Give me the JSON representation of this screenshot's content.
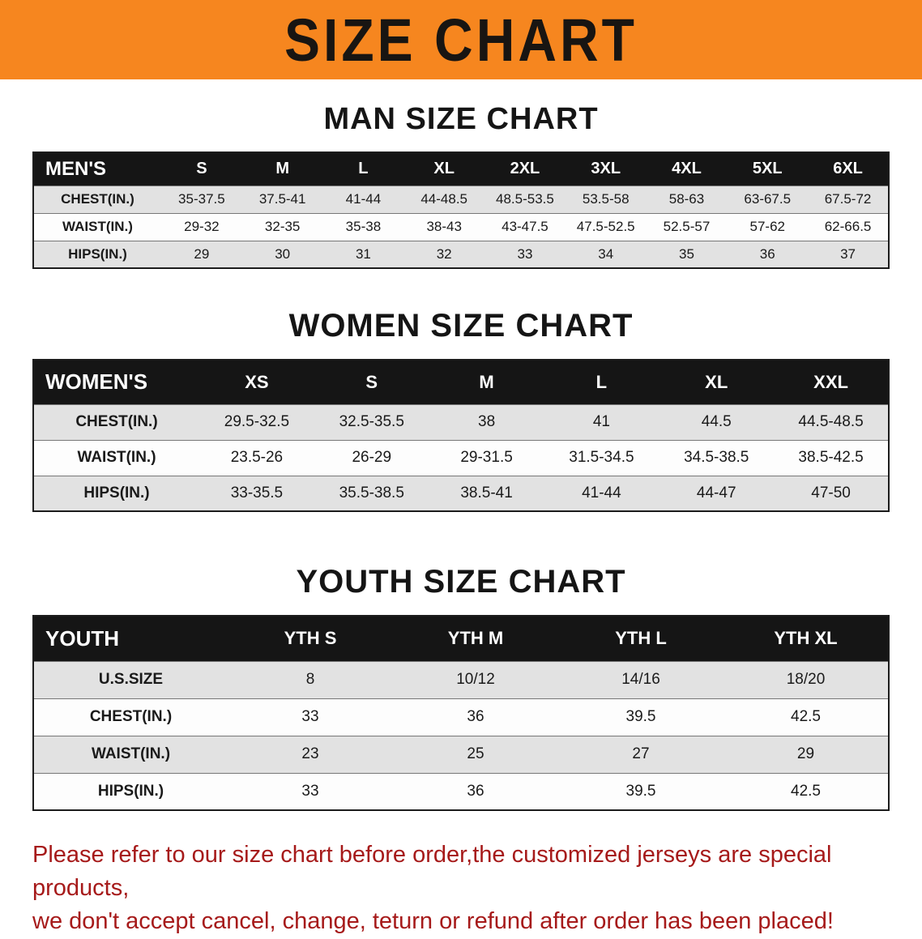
{
  "banner": {
    "title": "SIZE CHART"
  },
  "colors": {
    "banner_bg": "#f6861f",
    "table_header_bg": "#151515",
    "row_stripe": "#e2e2e2",
    "disclaimer_red": "#a61a1a"
  },
  "sections": [
    {
      "heading": "MAN SIZE CHART",
      "table": {
        "header": [
          "MEN'S",
          "S",
          "M",
          "L",
          "XL",
          "2XL",
          "3XL",
          "4XL",
          "5XL",
          "6XL"
        ],
        "rows": [
          [
            "CHEST(IN.)",
            "35-37.5",
            "37.5-41",
            "41-44",
            "44-48.5",
            "48.5-53.5",
            "53.5-58",
            "58-63",
            "63-67.5",
            "67.5-72"
          ],
          [
            "WAIST(IN.)",
            "29-32",
            "32-35",
            "35-38",
            "38-43",
            "43-47.5",
            "47.5-52.5",
            "52.5-57",
            "57-62",
            "62-66.5"
          ],
          [
            "HIPS(IN.)",
            "29",
            "30",
            "31",
            "32",
            "33",
            "34",
            "35",
            "36",
            "37"
          ]
        ]
      }
    },
    {
      "heading": "WOMEN SIZE CHART",
      "table": {
        "header": [
          "WOMEN'S",
          "XS",
          "S",
          "M",
          "L",
          "XL",
          "XXL"
        ],
        "rows": [
          [
            "CHEST(IN.)",
            "29.5-32.5",
            "32.5-35.5",
            "38",
            "41",
            "44.5",
            "44.5-48.5"
          ],
          [
            "WAIST(IN.)",
            "23.5-26",
            "26-29",
            "29-31.5",
            "31.5-34.5",
            "34.5-38.5",
            "38.5-42.5"
          ],
          [
            "HIPS(IN.)",
            "33-35.5",
            "35.5-38.5",
            "38.5-41",
            "41-44",
            "44-47",
            "47-50"
          ]
        ]
      }
    },
    {
      "heading": "YOUTH SIZE CHART",
      "table": {
        "header": [
          "YOUTH",
          "YTH S",
          "YTH M",
          "YTH L",
          "YTH XL"
        ],
        "rows": [
          [
            "U.S.SIZE",
            "8",
            "10/12",
            "14/16",
            "18/20"
          ],
          [
            "CHEST(IN.)",
            "33",
            "36",
            "39.5",
            "42.5"
          ],
          [
            "WAIST(IN.)",
            "23",
            "25",
            "27",
            "29"
          ],
          [
            "HIPS(IN.)",
            "33",
            "36",
            "39.5",
            "42.5"
          ]
        ]
      }
    }
  ],
  "disclaimer": {
    "lines": [
      "Please refer to our size chart before order,the customized jerseys are special products,",
      "we don't accept cancel, change, teturn or refund after order has been placed!"
    ]
  }
}
